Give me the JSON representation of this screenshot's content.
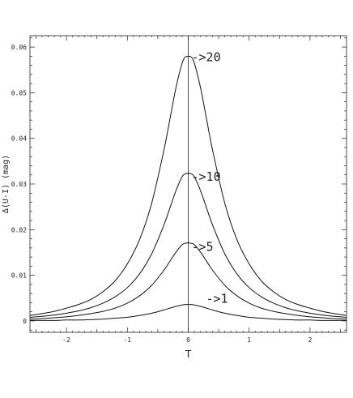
{
  "chart_data": {
    "type": "line",
    "xlabel": "T",
    "ylabel": "Δ(U-I) (mag)",
    "xlim": [
      -2.6,
      2.6
    ],
    "ylim": [
      -0.0025,
      0.0625
    ],
    "x_ticks": [
      -2,
      -1,
      0,
      1,
      2
    ],
    "x_tick_labels": [
      "-2",
      "-1",
      "0",
      "1",
      "2"
    ],
    "y_ticks": [
      0,
      0.01,
      0.02,
      0.03,
      0.04,
      0.05,
      0.06
    ],
    "y_tick_labels": [
      "0",
      "0.01",
      "0.02",
      "0.03",
      "0.04",
      "0.05",
      "0.06"
    ],
    "grid": false,
    "series": [
      {
        "name": "->20",
        "x": [
          -2.6,
          -2.4,
          -2.2,
          -2.0,
          -1.8,
          -1.6,
          -1.4,
          -1.2,
          -1.0,
          -0.8,
          -0.6,
          -0.4,
          -0.3,
          -0.2,
          -0.1,
          -0.05,
          0,
          0.05,
          0.1,
          0.2,
          0.3,
          0.4,
          0.6,
          0.8,
          1.0,
          1.2,
          1.4,
          1.6,
          1.8,
          2.0,
          2.2,
          2.4,
          2.6
        ],
        "y": [
          0.0012,
          0.0016,
          0.0021,
          0.0028,
          0.0036,
          0.0047,
          0.0064,
          0.0088,
          0.0125,
          0.0178,
          0.0258,
          0.0374,
          0.0443,
          0.0512,
          0.0565,
          0.0578,
          0.058,
          0.0578,
          0.0565,
          0.0512,
          0.0443,
          0.0374,
          0.0258,
          0.0178,
          0.0125,
          0.0088,
          0.0064,
          0.0047,
          0.0036,
          0.0028,
          0.0021,
          0.0016,
          0.0012
        ]
      },
      {
        "name": "->10",
        "x": [
          -2.6,
          -2.4,
          -2.2,
          -2.0,
          -1.8,
          -1.6,
          -1.4,
          -1.2,
          -1.0,
          -0.8,
          -0.6,
          -0.4,
          -0.3,
          -0.2,
          -0.1,
          -0.05,
          0,
          0.05,
          0.1,
          0.2,
          0.3,
          0.4,
          0.6,
          0.8,
          1.0,
          1.2,
          1.4,
          1.6,
          1.8,
          2.0,
          2.2,
          2.4,
          2.6
        ],
        "y": [
          0.0008,
          0.001,
          0.0013,
          0.0017,
          0.0022,
          0.0029,
          0.0039,
          0.0053,
          0.0073,
          0.0103,
          0.0147,
          0.021,
          0.0248,
          0.0286,
          0.0316,
          0.0322,
          0.0323,
          0.0322,
          0.0316,
          0.0286,
          0.0248,
          0.021,
          0.0147,
          0.0103,
          0.0073,
          0.0053,
          0.0039,
          0.0029,
          0.0022,
          0.0017,
          0.0013,
          0.001,
          0.0008
        ]
      },
      {
        "name": "->5",
        "x": [
          -2.6,
          -2.4,
          -2.2,
          -2.0,
          -1.8,
          -1.6,
          -1.4,
          -1.2,
          -1.0,
          -0.8,
          -0.6,
          -0.4,
          -0.3,
          -0.2,
          -0.1,
          -0.05,
          0,
          0.05,
          0.1,
          0.2,
          0.3,
          0.4,
          0.6,
          0.8,
          1.0,
          1.2,
          1.4,
          1.6,
          1.8,
          2.0,
          2.2,
          2.4,
          2.6
        ],
        "y": [
          0.0004,
          0.0005,
          0.0007,
          0.0009,
          0.0012,
          0.0016,
          0.0021,
          0.0028,
          0.0039,
          0.0055,
          0.0078,
          0.0111,
          0.0131,
          0.0151,
          0.0167,
          0.017,
          0.0171,
          0.017,
          0.0167,
          0.0151,
          0.0131,
          0.0111,
          0.0078,
          0.0055,
          0.0039,
          0.0028,
          0.0021,
          0.0016,
          0.0012,
          0.0009,
          0.0007,
          0.0005,
          0.0004
        ]
      },
      {
        "name": "->1",
        "x": [
          -2.6,
          -2.4,
          -2.2,
          -2.0,
          -1.8,
          -1.6,
          -1.4,
          -1.2,
          -1.0,
          -0.8,
          -0.6,
          -0.4,
          -0.3,
          -0.2,
          -0.1,
          -0.05,
          0,
          0.05,
          0.1,
          0.2,
          0.3,
          0.4,
          0.6,
          0.8,
          1.0,
          1.2,
          1.4,
          1.6,
          1.8,
          2.0,
          2.2,
          2.4,
          2.6
        ],
        "y": [
          0.0001,
          0.0001,
          0.0001,
          0.0002,
          0.0002,
          0.0003,
          0.0004,
          0.0006,
          0.0008,
          0.0012,
          0.0017,
          0.0024,
          0.0028,
          0.0032,
          0.0035,
          0.0036,
          0.0036,
          0.0036,
          0.0035,
          0.0032,
          0.0028,
          0.0024,
          0.0017,
          0.0012,
          0.0008,
          0.0006,
          0.0004,
          0.0003,
          0.0002,
          0.0002,
          0.0001,
          0.0001,
          0.0001
        ]
      }
    ]
  }
}
